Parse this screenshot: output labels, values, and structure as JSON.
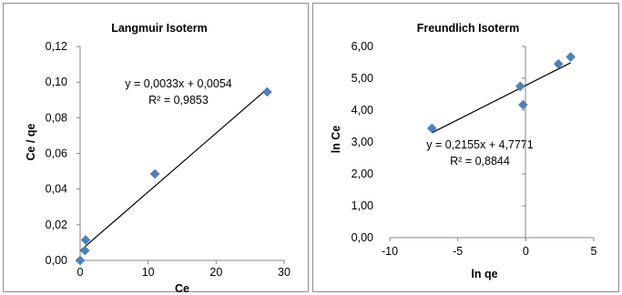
{
  "chart_data": [
    {
      "type": "scatter",
      "title": "Langmuir Isoterm",
      "xlabel": "Ce",
      "ylabel": "Ce / qe",
      "xlim": [
        0,
        30
      ],
      "ylim": [
        0,
        0.12
      ],
      "xticks": [
        "0",
        "10",
        "20",
        "30"
      ],
      "yticks": [
        "0,00",
        "0,02",
        "0,04",
        "0,06",
        "0,08",
        "0,10",
        "0,12"
      ],
      "grid": false,
      "legend": "none",
      "marker_color": "#4f81bd",
      "points": [
        {
          "x": 0.0,
          "y": 0.0
        },
        {
          "x": 0.7,
          "y": 0.0055
        },
        {
          "x": 0.8,
          "y": 0.0115
        },
        {
          "x": 11.0,
          "y": 0.0485
        },
        {
          "x": 27.5,
          "y": 0.0945
        }
      ],
      "trendline": {
        "slope": 0.0033,
        "intercept": 0.0054,
        "x_start": 0.0,
        "x_end": 27.5
      },
      "equation": "y = 0,0033x + 0,0054",
      "r2": "R² = 0,9853"
    },
    {
      "type": "scatter",
      "title": "Freundlich Isoterm",
      "xlabel": "ln qe",
      "ylabel": "ln Ce",
      "xlim": [
        -10,
        5
      ],
      "ylim": [
        0,
        6
      ],
      "xticks": [
        "-10",
        "-5",
        "0",
        "5"
      ],
      "yticks": [
        "0,00",
        "1,00",
        "2,00",
        "3,00",
        "4,00",
        "5,00",
        "6,00"
      ],
      "grid": false,
      "legend": "none",
      "marker_color": "#4f81bd",
      "points": [
        {
          "x": -6.9,
          "y": 3.43
        },
        {
          "x": -0.4,
          "y": 4.75
        },
        {
          "x": -0.2,
          "y": 4.17
        },
        {
          "x": 2.4,
          "y": 5.45
        },
        {
          "x": 3.3,
          "y": 5.67
        }
      ],
      "trendline": {
        "slope": 0.2155,
        "intercept": 4.7771,
        "x_start": -6.9,
        "x_end": 3.3
      },
      "equation": "y = 0,2155x + 4,7771",
      "r2": "R² = 0,8844"
    }
  ]
}
